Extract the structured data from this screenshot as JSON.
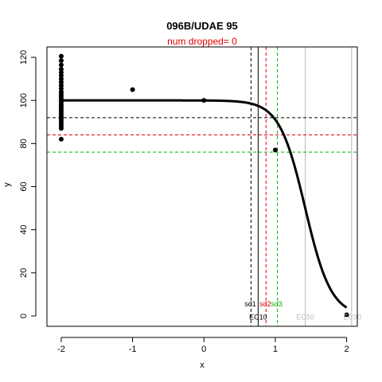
{
  "chart_data": {
    "type": "scatter",
    "title": "096B/UDAE 95",
    "subtitle": "num dropped= 0",
    "xlabel": "x",
    "ylabel": "y",
    "xlim": [
      -2.2,
      2.15
    ],
    "ylim": [
      -4.8,
      124.8
    ],
    "x_ticks": [
      -2,
      -1,
      0,
      1,
      2
    ],
    "y_ticks": [
      0,
      20,
      40,
      60,
      80,
      100,
      120
    ],
    "colors": {
      "title": "#000000",
      "subtitle": "#e00000",
      "curve": "#000000",
      "sd1": "#000000",
      "sd2": "#e00000",
      "sd3": "#00b000",
      "ec_gray": "#bbbbbb"
    },
    "points": [
      {
        "x": -2,
        "y": 120.5
      },
      {
        "x": -2,
        "y": 118.5
      },
      {
        "x": -2,
        "y": 116.5
      },
      {
        "x": -2,
        "y": 114.5
      },
      {
        "x": -2,
        "y": 113
      },
      {
        "x": -2,
        "y": 111.5
      },
      {
        "x": -2,
        "y": 110
      },
      {
        "x": -2,
        "y": 108.5
      },
      {
        "x": -2,
        "y": 107
      },
      {
        "x": -2,
        "y": 105.5
      },
      {
        "x": -2,
        "y": 104
      },
      {
        "x": -2,
        "y": 103
      },
      {
        "x": -2,
        "y": 102
      },
      {
        "x": -2,
        "y": 101
      },
      {
        "x": -2,
        "y": 100
      },
      {
        "x": -2,
        "y": 99
      },
      {
        "x": -2,
        "y": 98
      },
      {
        "x": -2,
        "y": 97
      },
      {
        "x": -2,
        "y": 96
      },
      {
        "x": -2,
        "y": 95
      },
      {
        "x": -2,
        "y": 94
      },
      {
        "x": -2,
        "y": 93
      },
      {
        "x": -2,
        "y": 92
      },
      {
        "x": -2,
        "y": 91
      },
      {
        "x": -2,
        "y": 90
      },
      {
        "x": -2,
        "y": 89
      },
      {
        "x": -2,
        "y": 88
      },
      {
        "x": -2,
        "y": 87
      },
      {
        "x": -2,
        "y": 82
      },
      {
        "x": -1,
        "y": 105
      },
      {
        "x": 0,
        "y": 100
      },
      {
        "x": 1,
        "y": 77
      },
      {
        "x": 2,
        "y": 0.5
      }
    ],
    "curve": {
      "top": 100,
      "bottom": 0,
      "x50": 1.42,
      "slope": 2.4
    },
    "vlines": [
      {
        "x": 0.66,
        "color": "#000000",
        "dash": true
      },
      {
        "x": 0.76,
        "color": "#000000",
        "dash": false
      },
      {
        "x": 0.87,
        "color": "#e00000",
        "dash": true
      },
      {
        "x": 1.03,
        "color": "#00b000",
        "dash": true
      },
      {
        "x": 1.42,
        "color": "#bbbbbb",
        "dash": false
      },
      {
        "x": 2.07,
        "color": "#bbbbbb",
        "dash": false
      }
    ],
    "hlines": [
      {
        "y": 92,
        "color": "#000000"
      },
      {
        "y": 84,
        "color": "#e00000"
      },
      {
        "y": 76,
        "color": "#00b000"
      }
    ],
    "annotations": [
      {
        "text": "sd1",
        "x": 0.65,
        "y": 5.5,
        "color": "#000000"
      },
      {
        "text": "sd2",
        "x": 0.86,
        "y": 5.5,
        "color": "#e00000"
      },
      {
        "text": "sd3",
        "x": 1.02,
        "y": 5.5,
        "color": "#00b000"
      },
      {
        "text": "EC10",
        "x": 0.76,
        "y": -0.5,
        "color": "#000000"
      },
      {
        "text": "EC50",
        "x": 1.42,
        "y": -0.5,
        "color": "#bbbbbb"
      },
      {
        "text": "EC90",
        "x": 2.08,
        "y": -0.5,
        "color": "#bbbbbb"
      }
    ]
  }
}
